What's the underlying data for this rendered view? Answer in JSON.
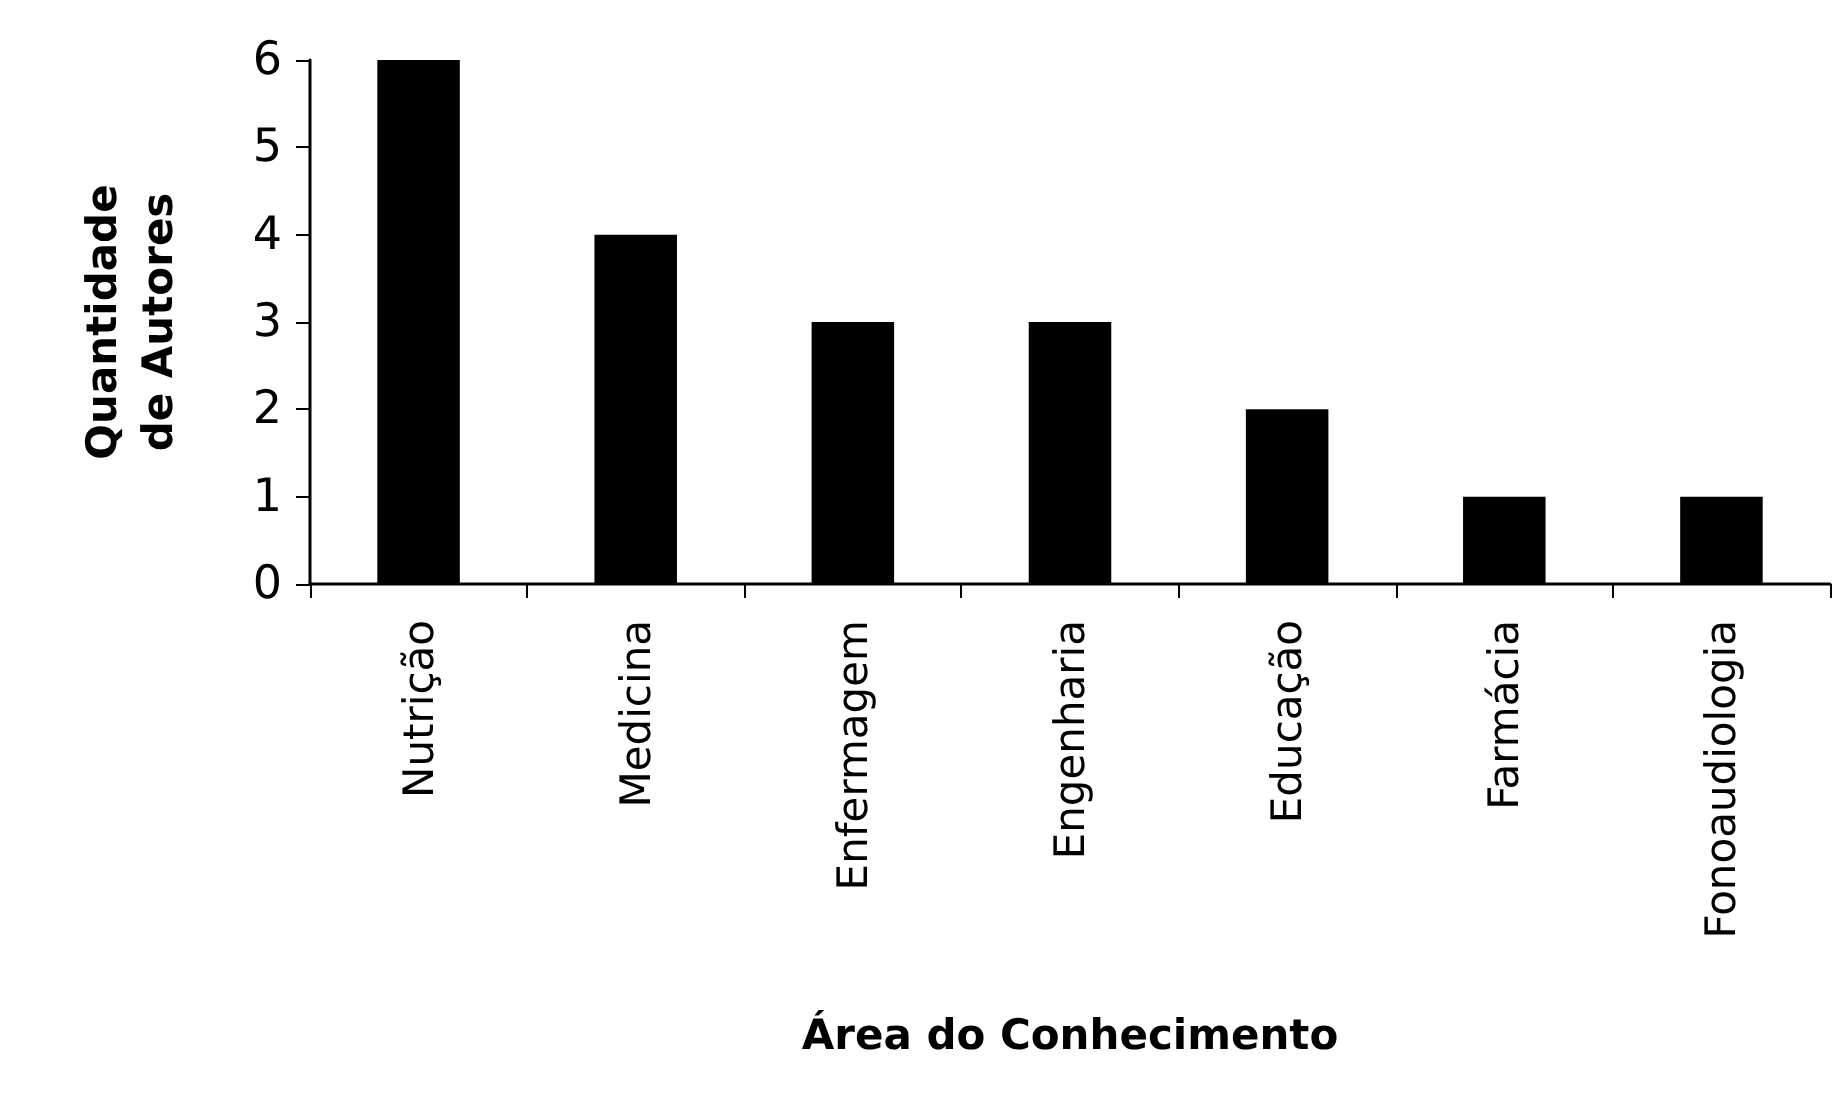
{
  "chart_data": {
    "type": "bar",
    "xlabel": "Área do Conhecimento",
    "ylabel": "Quantidade de Autores",
    "categories": [
      "Nutrição",
      "Medicina",
      "Enfermagem",
      "Engenharia",
      "Educação",
      "Farmácia",
      "Fonoaudiologia"
    ],
    "values": [
      6,
      4,
      3,
      3,
      2,
      1,
      1
    ],
    "color": "#000000",
    "ylim": [
      0,
      6
    ],
    "yticks": [
      0,
      1,
      2,
      3,
      4,
      5,
      6
    ],
    "grid": false
  }
}
